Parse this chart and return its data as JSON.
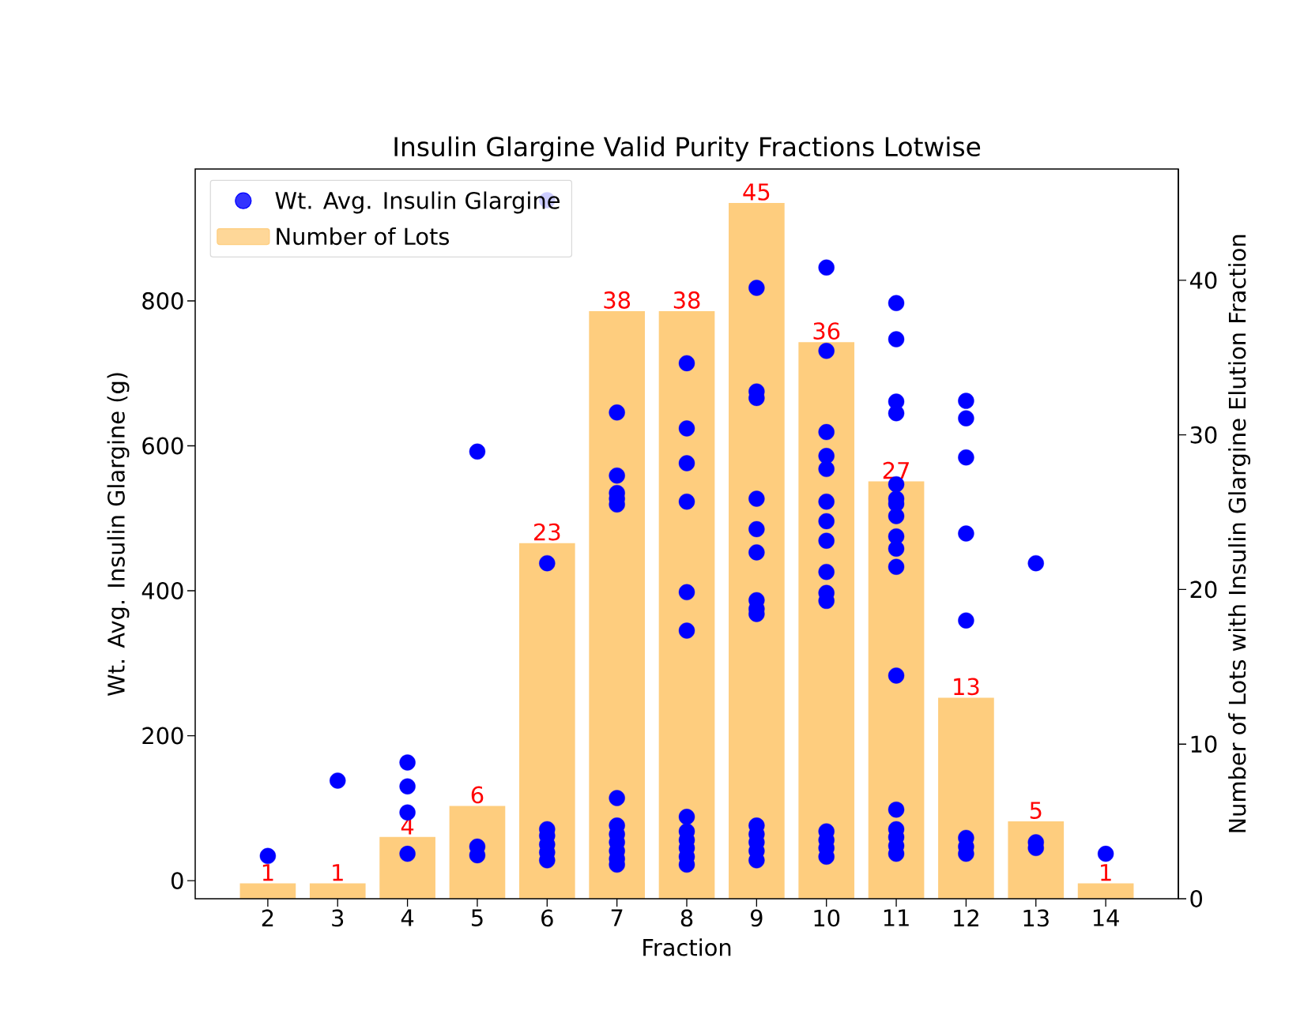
{
  "chart_data": {
    "type": "scatter",
    "title": "Insulin Glargine Valid Purity Fractions Lotwise",
    "xlabel": "Fraction",
    "ylabel": "Wt. Avg. Insulin Glargine (g)",
    "y2label": "Number of Lots with Insulin Glargine Elution Fraction",
    "x": [
      2,
      3,
      4,
      5,
      6,
      7,
      8,
      9,
      10,
      11,
      12,
      13,
      14
    ],
    "xlim": [
      0.96,
      15.04
    ],
    "xticks": [
      2,
      3,
      4,
      5,
      6,
      7,
      8,
      9,
      10,
      11,
      12,
      13,
      14
    ],
    "ylim": [
      -25,
      982
    ],
    "yticks": [
      0,
      200,
      400,
      600,
      800
    ],
    "y2lim": [
      0,
      47.2
    ],
    "y2ticks": [
      0,
      10,
      20,
      30,
      40
    ],
    "legend": "top left",
    "marker": "circle",
    "grid": false,
    "series": [
      {
        "name": "Wt. Avg. Insulin Glargine",
        "color": "#0000ff",
        "x": [
          2,
          3,
          4,
          4,
          4,
          4,
          5,
          5,
          5,
          6,
          6,
          6,
          6,
          6,
          6,
          6,
          7,
          7,
          7,
          7,
          7,
          7,
          7,
          7,
          7,
          7,
          7,
          7,
          8,
          8,
          8,
          8,
          8,
          8,
          8,
          8,
          8,
          8,
          8,
          8,
          9,
          9,
          9,
          9,
          9,
          9,
          9,
          9,
          9,
          9,
          9,
          9,
          9,
          9,
          10,
          10,
          10,
          10,
          10,
          10,
          10,
          10,
          10,
          10,
          10,
          10,
          10,
          10,
          10,
          11,
          11,
          11,
          11,
          11,
          11,
          11,
          11,
          11,
          11,
          11,
          11,
          11,
          11,
          11,
          11,
          11,
          12,
          12,
          12,
          12,
          12,
          12,
          12,
          12,
          13,
          13,
          13,
          14
        ],
        "values": [
          34,
          138,
          163,
          130,
          94,
          37,
          592,
          47,
          35,
          939,
          438,
          71,
          62,
          50,
          39,
          28,
          646,
          559,
          535,
          527,
          519,
          114,
          76,
          64,
          53,
          41,
          30,
          22,
          714,
          624,
          576,
          523,
          398,
          345,
          88,
          68,
          56,
          45,
          33,
          22,
          818,
          675,
          666,
          527,
          485,
          453,
          387,
          375,
          368,
          76,
          64,
          53,
          41,
          28,
          846,
          731,
          619,
          586,
          568,
          523,
          496,
          469,
          426,
          397,
          386,
          68,
          56,
          45,
          33,
          797,
          747,
          661,
          645,
          547,
          527,
          520,
          503,
          475,
          458,
          433,
          283,
          98,
          71,
          60,
          48,
          37,
          662,
          638,
          584,
          479,
          359,
          59,
          47,
          37,
          438,
          53,
          45,
          37
        ]
      },
      {
        "name": "Number of Lots",
        "type": "bar",
        "axis": "y2",
        "color": "#fecd7e",
        "values": [
          1,
          1,
          4,
          6,
          23,
          38,
          38,
          45,
          36,
          27,
          13,
          5,
          1
        ],
        "value_labels": [
          "1",
          "1",
          "4",
          "6",
          "23",
          "38",
          "38",
          "45",
          "36",
          "27",
          "13",
          "5",
          "1"
        ]
      }
    ]
  }
}
